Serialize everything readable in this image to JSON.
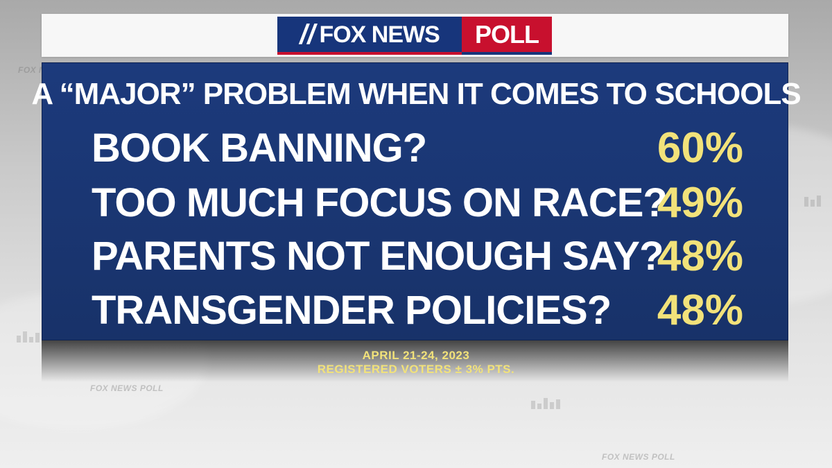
{
  "logo": {
    "brand": "FOX NEWS",
    "poll": "POLL",
    "colors": {
      "navy": "#17357b",
      "red": "#c8102e"
    }
  },
  "poll": {
    "title": "A “MAJOR” PROBLEM WHEN IT COMES TO SCHOOLS",
    "items": [
      {
        "label": "BOOK BANNING?",
        "value": "60%"
      },
      {
        "label": "TOO MUCH FOCUS ON RACE?",
        "value": "49%"
      },
      {
        "label": "PARENTS NOT ENOUGH SAY?",
        "value": "48%"
      },
      {
        "label": "TRANSGENDER POLICIES?",
        "value": "48%"
      }
    ],
    "footer": {
      "dates": "APRIL 21-24, 2023",
      "sample": "REGISTERED VOTERS ± 3% PTS."
    }
  },
  "background": {
    "watermark": "FOX NEWS POLL"
  },
  "colors": {
    "panel": "#1c3a7c",
    "value_text": "#f2e27a",
    "label_text": "#ffffff"
  }
}
